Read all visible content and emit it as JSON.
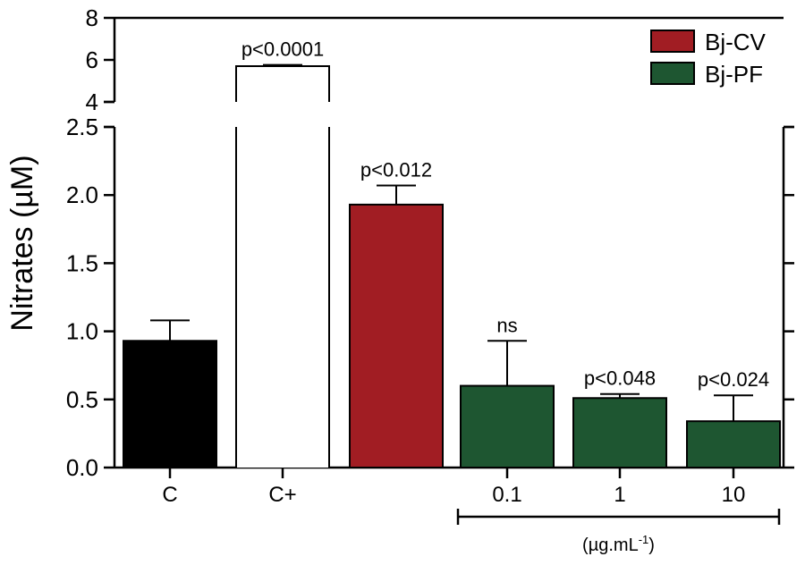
{
  "chart_data": {
    "type": "bar",
    "title": "",
    "xlabel": "",
    "ylabel": "Nitrates (µM)",
    "y_axis": {
      "lower_segment": {
        "ylim": [
          0,
          2.5
        ],
        "ticks": [
          "0.0",
          "0.5",
          "1.0",
          "1.5",
          "2.0",
          "2.5"
        ]
      },
      "upper_segment": {
        "ylim": [
          4,
          8
        ],
        "ticks": [
          "4",
          "6",
          "8"
        ]
      },
      "broken": true
    },
    "bars": [
      {
        "name": "C",
        "category": "C",
        "value": 0.93,
        "error": 0.15,
        "color": "#000000",
        "annotation": ""
      },
      {
        "name": "C+",
        "category": "C+",
        "value": 5.7,
        "error": 0.06,
        "color": "#ffffff",
        "annotation": "p<0.0001"
      },
      {
        "name": "Bj-CV",
        "category": "",
        "value": 1.93,
        "error": 0.14,
        "color": "#a11d23",
        "annotation": "p<0.012"
      },
      {
        "name": "Bj-PF 0.1",
        "category": "0.1",
        "value": 0.6,
        "error": 0.33,
        "color": "#1e5631",
        "annotation": "ns"
      },
      {
        "name": "Bj-PF 1",
        "category": "1",
        "value": 0.51,
        "error": 0.03,
        "color": "#1e5631",
        "annotation": "p<0.048"
      },
      {
        "name": "Bj-PF 10",
        "category": "10",
        "value": 0.34,
        "error": 0.19,
        "color": "#1e5631",
        "annotation": "p<0.024"
      }
    ],
    "legend": {
      "position": "top-right",
      "items": [
        {
          "label": "Bj-CV",
          "color": "#a11d23"
        },
        {
          "label": "Bj-PF",
          "color": "#1e5631"
        }
      ]
    },
    "concentration_unit": "(µg.mL",
    "concentration_unit_sup": "-1",
    "concentration_unit_close": ")"
  }
}
